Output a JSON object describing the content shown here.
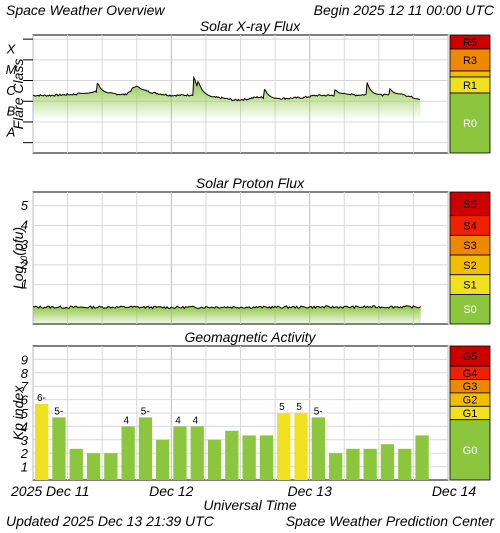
{
  "header": {
    "title": "Space Weather Overview",
    "begin_label": "Begin",
    "begin": "2025 12 11 00:00 UTC"
  },
  "footer": {
    "updated_label": "Updated",
    "updated": "2025 Dec 13 21:39 UTC",
    "source": "Space Weather Prediction Center"
  },
  "colors": {
    "bar_green": "#8cc63f",
    "bar_yellow": "#f0e11e",
    "trace_green": "#8cc63f",
    "trace_line": "#000000",
    "grid": "#d8d8d8"
  },
  "chart_data": [
    {
      "type": "line",
      "title": "Solar X-ray Flux",
      "ylabel": "Flare Class",
      "y_scale": "log",
      "ticks": [
        "A",
        "B",
        "C",
        "M",
        "X"
      ],
      "ylim": [
        -8.5,
        -2.8
      ],
      "xlim": [
        0,
        72
      ],
      "trend": [
        [
          0,
          -5.72
        ],
        [
          3,
          -5.72
        ],
        [
          6,
          -5.68
        ],
        [
          9,
          -5.64
        ],
        [
          11,
          -5.54
        ],
        [
          13,
          -5.62
        ],
        [
          16,
          -5.68
        ],
        [
          18,
          -5.3
        ],
        [
          19,
          -5.45
        ],
        [
          21,
          -5.6
        ],
        [
          24,
          -5.72
        ],
        [
          27,
          -5.7
        ],
        [
          29,
          -5.62
        ],
        [
          31,
          -5.8
        ],
        [
          33,
          -5.85
        ],
        [
          35,
          -5.95
        ],
        [
          37,
          -5.9
        ],
        [
          39,
          -5.8
        ],
        [
          42,
          -5.88
        ],
        [
          45,
          -5.85
        ],
        [
          47,
          -5.82
        ],
        [
          49,
          -5.72
        ],
        [
          52,
          -5.72
        ],
        [
          54,
          -5.65
        ],
        [
          56,
          -5.7
        ],
        [
          58,
          -5.68
        ],
        [
          60,
          -5.7
        ],
        [
          62,
          -5.7
        ],
        [
          64,
          -5.66
        ],
        [
          66,
          -5.82
        ],
        [
          67.3,
          -5.9
        ]
      ],
      "spikes": [
        [
          8.0,
          -5.6
        ],
        [
          11.3,
          -5.15
        ],
        [
          17.3,
          -5.35
        ],
        [
          28.0,
          -4.85
        ],
        [
          28.7,
          -5.05
        ],
        [
          40.3,
          -5.45
        ],
        [
          52.5,
          -5.45
        ],
        [
          58.0,
          -5.1
        ],
        [
          62.0,
          -5.4
        ]
      ],
      "scale": {
        "labels": [
          "R5",
          "R3",
          "R1",
          "R0"
        ],
        "colors": [
          "#cc0000",
          "#ee8800",
          "#f0e11e",
          "#8cc63f"
        ]
      }
    },
    {
      "type": "line",
      "title": "Solar Proton Flux",
      "ylabel": "Log10(pfu)",
      "ylabel_main": "Log",
      "ylabel_sub": "10",
      "ylabel_tail": "(pfu)",
      "ticks": [
        "1",
        "2",
        "3",
        "4",
        "5"
      ],
      "ylim": [
        -1.0,
        5.7
      ],
      "xlim": [
        0,
        72
      ],
      "trend": [
        [
          0,
          -0.14
        ],
        [
          8,
          -0.15
        ],
        [
          16,
          -0.14
        ],
        [
          24,
          -0.16
        ],
        [
          32,
          -0.14
        ],
        [
          40,
          -0.15
        ],
        [
          48,
          -0.14
        ],
        [
          56,
          -0.14
        ],
        [
          64,
          -0.13
        ],
        [
          67.3,
          -0.14
        ]
      ],
      "scale": {
        "labels": [
          "S5",
          "S4",
          "S3",
          "S2",
          "S1",
          "S0"
        ],
        "colors": [
          "#cc0000",
          "#ee2200",
          "#ee8800",
          "#f0c000",
          "#f0e11e",
          "#8cc63f"
        ]
      }
    },
    {
      "type": "bar",
      "title": "Geomagnetic Activity",
      "ylabel": "Kp index",
      "ticks": [
        "1",
        "2",
        "3",
        "4",
        "5",
        "6",
        "7",
        "8",
        "9"
      ],
      "ylim": [
        0,
        10
      ],
      "kp_values": [
        5.67,
        4.67,
        2.33,
        2.0,
        2.0,
        4.0,
        4.67,
        3.0,
        4.0,
        4.0,
        3.0,
        3.67,
        3.33,
        3.33,
        5.0,
        5.0,
        4.67,
        2.0,
        2.33,
        2.33,
        2.67,
        2.33,
        3.33
      ],
      "bar_labels": [
        "6-",
        "5-",
        "",
        "",
        "",
        "4",
        "5-",
        "",
        "4",
        "4",
        "",
        "",
        "",
        "",
        "5",
        "5",
        "5-",
        "",
        "",
        "",
        "",
        "",
        ""
      ],
      "bar_colors": [
        "yellow",
        "green",
        "green",
        "green",
        "green",
        "green",
        "green",
        "green",
        "green",
        "green",
        "green",
        "green",
        "green",
        "green",
        "yellow",
        "yellow",
        "green",
        "green",
        "green",
        "green",
        "green",
        "green",
        "green"
      ],
      "scale": {
        "labels": [
          "G5",
          "G4",
          "G3",
          "G2",
          "G1",
          "G0"
        ],
        "colors": [
          "#cc0000",
          "#ee2200",
          "#ee8800",
          "#f0c000",
          "#f0e11e",
          "#8cc63f"
        ]
      }
    }
  ],
  "xaxis": {
    "title": "Universal Time",
    "ticks": [
      "2025 Dec 11",
      "Dec 12",
      "Dec 13",
      "Dec 14"
    ]
  }
}
